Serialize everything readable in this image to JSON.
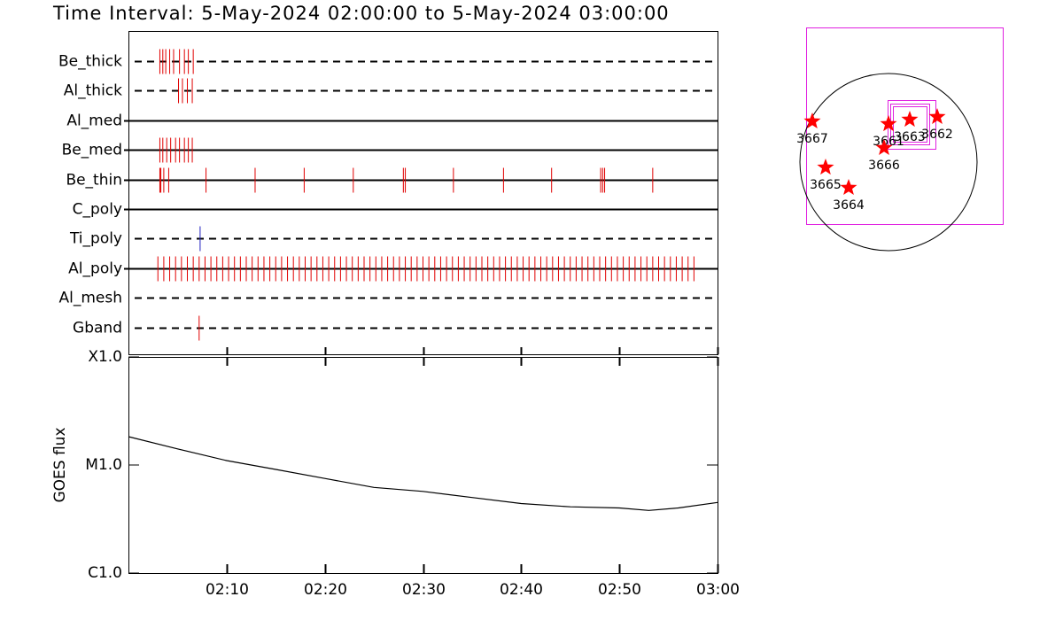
{
  "title": "Time Interval:  5-May-2024 02:00:00 to  5-May-2024 03:00:00",
  "chart_data": [
    {
      "type": "event",
      "xlim": [
        0,
        60
      ],
      "categories": [
        "Be_thick",
        "Al_thick",
        "Al_med",
        "Be_med",
        "Be_thin",
        "C_poly",
        "Ti_poly",
        "Al_poly",
        "Al_mesh",
        "Gband"
      ],
      "line_styles": [
        "dashed",
        "dashed",
        "solid",
        "solid",
        "solid",
        "solid",
        "dashed",
        "solid",
        "dashed",
        "dashed"
      ],
      "colors": [
        "#e00000",
        "#e00000",
        "#e00000",
        "#e00000",
        "#e00000",
        "#e00000",
        "#2020c0",
        "#e00000",
        "#e00000",
        "#e00000"
      ],
      "values": [
        [
          3.2,
          3.5,
          3.8,
          4.2,
          4.6,
          5.2,
          5.7,
          6.1,
          6.6
        ],
        [
          5.1,
          5.5,
          6.0,
          6.5
        ],
        [],
        [
          3.2,
          3.5,
          3.9,
          4.3,
          4.8,
          5.2,
          5.7,
          6.1,
          6.5
        ],
        [
          3.2,
          3.3,
          3.6,
          4.1,
          7.9,
          12.9,
          17.9,
          22.9,
          28.0,
          28.2,
          33.1,
          38.2,
          43.1,
          48.1,
          48.3,
          48.5,
          53.4
        ],
        [],
        [
          7.3
        ],
        [
          3.0,
          3.6,
          4.2,
          4.8,
          5.4,
          6.0,
          6.6,
          7.2,
          7.8,
          8.4,
          9.0,
          9.6,
          10.2,
          10.8,
          11.4,
          12.0,
          12.6,
          13.2,
          13.8,
          14.4,
          15.0,
          15.6,
          16.2,
          16.8,
          17.4,
          18.0,
          18.6,
          19.2,
          19.8,
          20.4,
          21.0,
          21.6,
          22.2,
          22.8,
          23.4,
          24.0,
          24.6,
          25.2,
          25.8,
          26.4,
          27.0,
          27.6,
          28.2,
          28.8,
          29.4,
          30.0,
          30.6,
          31.2,
          31.8,
          32.4,
          33.0,
          33.6,
          34.2,
          34.8,
          35.4,
          36.0,
          36.6,
          37.2,
          37.8,
          38.4,
          39.0,
          39.6,
          40.2,
          40.8,
          41.4,
          42.0,
          42.6,
          43.2,
          43.8,
          44.4,
          45.0,
          45.6,
          46.2,
          46.8,
          47.4,
          48.0,
          48.6,
          49.2,
          49.8,
          50.4,
          51.0,
          51.6,
          52.2,
          52.8,
          53.4,
          54.0,
          54.6,
          55.2,
          55.8,
          56.4,
          57.0,
          57.6
        ],
        [],
        [
          7.2
        ]
      ]
    },
    {
      "type": "line",
      "ylabel": "GOES flux",
      "xlim": [
        0,
        60
      ],
      "xticks": [
        {
          "value": 10,
          "label": "02:10"
        },
        {
          "value": 20,
          "label": "02:20"
        },
        {
          "value": 30,
          "label": "02:30"
        },
        {
          "value": 40,
          "label": "02:40"
        },
        {
          "value": 50,
          "label": "02:50"
        },
        {
          "value": 60,
          "label": "03:00"
        }
      ],
      "ylim": [
        1e-06,
        0.0001
      ],
      "log_y": true,
      "yticks": [
        {
          "value": 1e-06,
          "label": "C1.0"
        },
        {
          "value": 1e-05,
          "label": "M1.0"
        },
        {
          "value": 0.0001,
          "label": "X1.0"
        }
      ],
      "color": "#000000",
      "x": [
        0,
        5,
        10,
        15,
        20,
        25,
        30,
        35,
        40,
        45,
        50,
        53,
        56,
        60
      ],
      "values": [
        1.83e-05,
        1.41e-05,
        1.1e-05,
        9.1e-06,
        7.5e-06,
        6.2e-06,
        5.7e-06,
        5e-06,
        4.4e-06,
        4.1e-06,
        4e-06,
        3.8e-06,
        4e-06,
        4.5e-06
      ]
    },
    {
      "type": "scatter",
      "marker": "star",
      "color": "#ff0000",
      "labels": [
        "3667",
        "3661",
        "3663",
        "3662",
        "3666",
        "3665",
        "3664"
      ],
      "x": [
        -826,
        0,
        230,
        528,
        -48,
        -682,
        -432
      ],
      "y": [
        442,
        413,
        461,
        490,
        154,
        -58,
        -278
      ]
    }
  ]
}
